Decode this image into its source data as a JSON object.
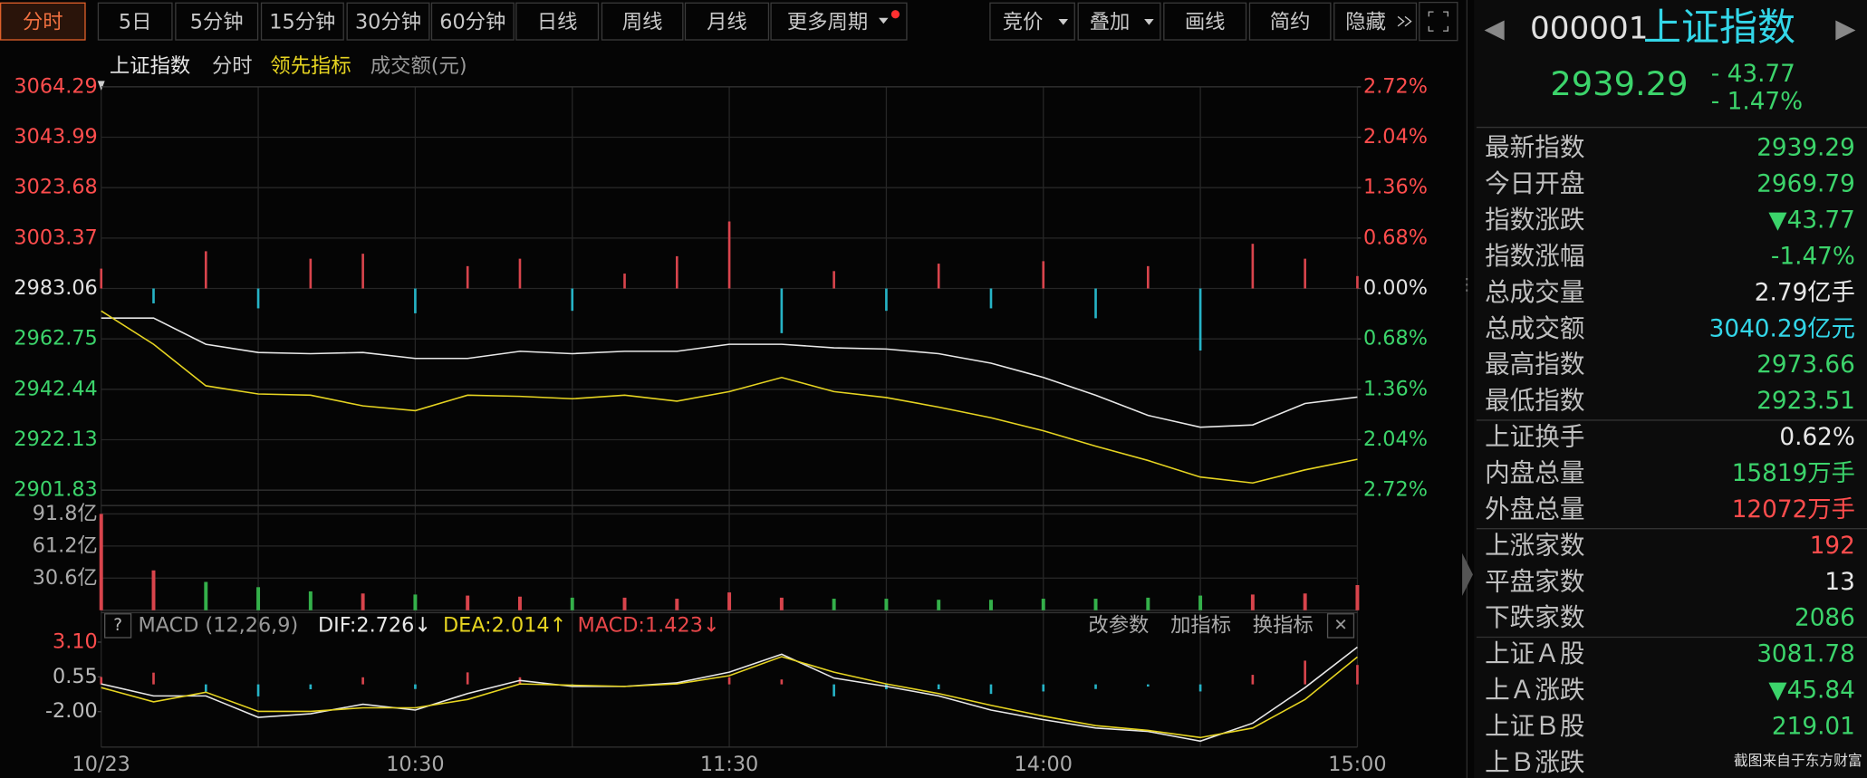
{
  "toolbar": {
    "periods": [
      "分时",
      "5日",
      "5分钟",
      "15分钟",
      "30分钟",
      "60分钟",
      "日线",
      "周线",
      "月线",
      "更多周期"
    ],
    "tools": [
      "竞价",
      "叠加",
      "画线",
      "简约",
      "隐藏"
    ]
  },
  "chart_data": [
    {
      "type": "line",
      "mode_label": "分时",
      "volume_label": "成交额(元)",
      "grid": true,
      "x": [
        "09:30",
        "09:40",
        "09:50",
        "10:00",
        "10:10",
        "10:20",
        "10:30",
        "10:40",
        "10:50",
        "11:00",
        "11:10",
        "11:20",
        "11:30",
        "13:10",
        "13:20",
        "13:30",
        "13:40",
        "13:50",
        "14:00",
        "14:10",
        "14:20",
        "14:30",
        "14:40",
        "14:50",
        "15:00"
      ],
      "xticks": [
        {
          "value": "09:30",
          "label": "10/23"
        },
        "10:30",
        "11:30",
        "14:00",
        "15:00"
      ],
      "xgrid": [
        "10:00",
        "11:00",
        "13:30",
        "14:30"
      ],
      "ylim": [
        2901.83,
        3064.29
      ],
      "yticks": [
        3064.29,
        3043.99,
        3023.68,
        3003.37,
        2983.06,
        2962.75,
        2942.44,
        2922.13,
        2901.83
      ],
      "y2lim": [
        -2.72,
        2.72
      ],
      "y2ticks": [
        {
          "value": 2.72,
          "label": "2.72%"
        },
        {
          "value": 2.04,
          "label": "2.04%"
        },
        {
          "value": 1.36,
          "label": "1.36%"
        },
        {
          "value": 0.68,
          "label": "0.68%"
        },
        {
          "value": 0,
          "label": "0.00%"
        },
        {
          "value": -0.68,
          "label": "0.68%"
        },
        {
          "value": -1.36,
          "label": "1.36%"
        },
        {
          "value": -2.04,
          "label": "2.04%"
        },
        {
          "value": -2.72,
          "label": "2.72%"
        }
      ],
      "series": [
        {
          "name": "上证指数",
          "color": "#e8e8e8",
          "values": [
            2971.11,
            2971.11,
            2960.6,
            2957.26,
            2956.78,
            2957.26,
            2954.87,
            2954.87,
            2957.74,
            2956.78,
            2957.74,
            2957.74,
            2960.6,
            2960.6,
            2959.17,
            2958.69,
            2956.78,
            2952.96,
            2947.22,
            2940.06,
            2931.94,
            2927.16,
            2928.11,
            2936.71,
            2939.29
          ]
        },
        {
          "name": "领先指标",
          "color": "#e6d421",
          "values": [
            2973.98,
            2960.6,
            2943.88,
            2940.54,
            2940.06,
            2935.76,
            2933.85,
            2940.06,
            2939.58,
            2938.62,
            2940.06,
            2937.67,
            2941.49,
            2947.22,
            2941.49,
            2939.1,
            2935.28,
            2930.98,
            2925.72,
            2919.51,
            2913.78,
            2907.09,
            2904.7,
            2909.96,
            2914.26
          ]
        }
      ],
      "bars": {
        "up_color": "#d8444c",
        "down_color": "#26b3c6",
        "values": [
          8,
          -6,
          15,
          -8,
          12,
          14,
          -10,
          9,
          12,
          -9,
          6,
          13,
          27,
          -18,
          7,
          -9,
          10,
          -8,
          11,
          -12,
          9,
          -25,
          18,
          12,
          5
        ]
      }
    },
    {
      "type": "bar",
      "ylim": [
        0,
        91.8
      ],
      "yticks": [
        {
          "value": 91.8,
          "label": "91.8亿"
        },
        {
          "value": 61.2,
          "label": "61.2亿"
        },
        {
          "value": 30.6,
          "label": "30.6亿"
        }
      ],
      "up_color": "#d8444c",
      "down_color": "#34b04a",
      "values": [
        91.8,
        38,
        27,
        22,
        18,
        16,
        15,
        14,
        13,
        12,
        12,
        11,
        17,
        12,
        11,
        11,
        10,
        10,
        11,
        11,
        12,
        14,
        15,
        16,
        24
      ]
    },
    {
      "type": "macd",
      "title": "MACD (12,26,9)",
      "ylim": [
        -4.6,
        5.0
      ],
      "yticks": [
        {
          "value": 3.1,
          "label": "3.10"
        },
        0.55,
        {
          "value": -2,
          "label": "-2.00"
        }
      ],
      "buttons": [
        "改参数",
        "加指标",
        "换指标"
      ],
      "series": [
        {
          "name": "DIF:2.726↓",
          "color": "#e8e8e8",
          "values": [
            0.03,
            -0.85,
            -0.85,
            -2.42,
            -2.16,
            -1.46,
            -1.89,
            -0.67,
            0.29,
            -0.15,
            -0.15,
            0.11,
            0.9,
            2.21,
            0.46,
            -0.15,
            -0.85,
            -1.89,
            -2.59,
            -3.2,
            -3.46,
            -4.16,
            -2.85,
            -0.24,
            2.73
          ]
        },
        {
          "name": "DEA:2.014↑",
          "color": "#e6d421",
          "values": [
            -0.24,
            -1.28,
            -0.58,
            -1.98,
            -1.98,
            -1.72,
            -1.72,
            -1.11,
            0.03,
            -0.06,
            -0.15,
            0.03,
            0.64,
            2.03,
            0.9,
            0.03,
            -0.67,
            -1.54,
            -2.33,
            -3.03,
            -3.38,
            -3.9,
            -3.2,
            -1.11,
            2.01
          ]
        }
      ],
      "histogram": {
        "name": "MACD:1.423↓",
        "color": "#e8474a",
        "up_color": "#d8444c",
        "down_color": "#26b3c6",
        "values": [
          0.54,
          0.86,
          -0.54,
          -0.88,
          -0.36,
          0.52,
          -0.34,
          0.88,
          0.52,
          -0.18,
          0,
          0.16,
          0.52,
          0.36,
          -0.88,
          -0.36,
          -0.36,
          -0.7,
          -0.52,
          -0.34,
          -0.16,
          -0.52,
          0.7,
          1.74,
          1.423
        ]
      }
    }
  ],
  "right_panel": {
    "code": "000001",
    "name": "上证指数",
    "price": "2939.29",
    "change": "- 43.77",
    "change_pct": "- 1.47%",
    "groups": [
      [
        {
          "label": "最新指数",
          "value": "2939.29",
          "color": "#3cd46b"
        },
        {
          "label": "今日开盘",
          "value": "2969.79",
          "color": "#3cd46b"
        },
        {
          "label": "指数涨跌",
          "value": "▼43.77",
          "color": "#3cd46b"
        },
        {
          "label": "指数涨幅",
          "value": "-1.47%",
          "color": "#3cd46b"
        },
        {
          "label": "总成交量",
          "value": "2.79亿手",
          "color": "#e8e8e8"
        },
        {
          "label": "总成交额",
          "value": "3040.29亿元",
          "color": "#33d6e8"
        },
        {
          "label": "最高指数",
          "value": "2973.66",
          "color": "#3cd46b"
        },
        {
          "label": "最低指数",
          "value": "2923.51",
          "color": "#3cd46b"
        }
      ],
      [
        {
          "label": "上证换手",
          "value": "0.62%",
          "color": "#e8e8e8"
        },
        {
          "label": "内盘总量",
          "value": "15819万手",
          "color": "#3cd46b"
        },
        {
          "label": "外盘总量",
          "value": "12072万手",
          "color": "#ff4d4d"
        }
      ],
      [
        {
          "label": "上涨家数",
          "value": "192",
          "color": "#ff4d4d"
        },
        {
          "label": "平盘家数",
          "value": "13",
          "color": "#e8e8e8"
        },
        {
          "label": "下跌家数",
          "value": "2086",
          "color": "#3cd46b"
        }
      ],
      [
        {
          "label": "上证Ａ股",
          "value": "3081.78",
          "color": "#3cd46b"
        },
        {
          "label": "上Ａ涨跌",
          "value": "▼45.84",
          "color": "#3cd46b"
        },
        {
          "label": "上证Ｂ股",
          "value": "219.01",
          "color": "#3cd46b"
        },
        {
          "label": "上Ｂ涨跌",
          "value": "",
          "color": "#3cd46b"
        }
      ]
    ]
  },
  "watermark": "截图来自于东方财富"
}
